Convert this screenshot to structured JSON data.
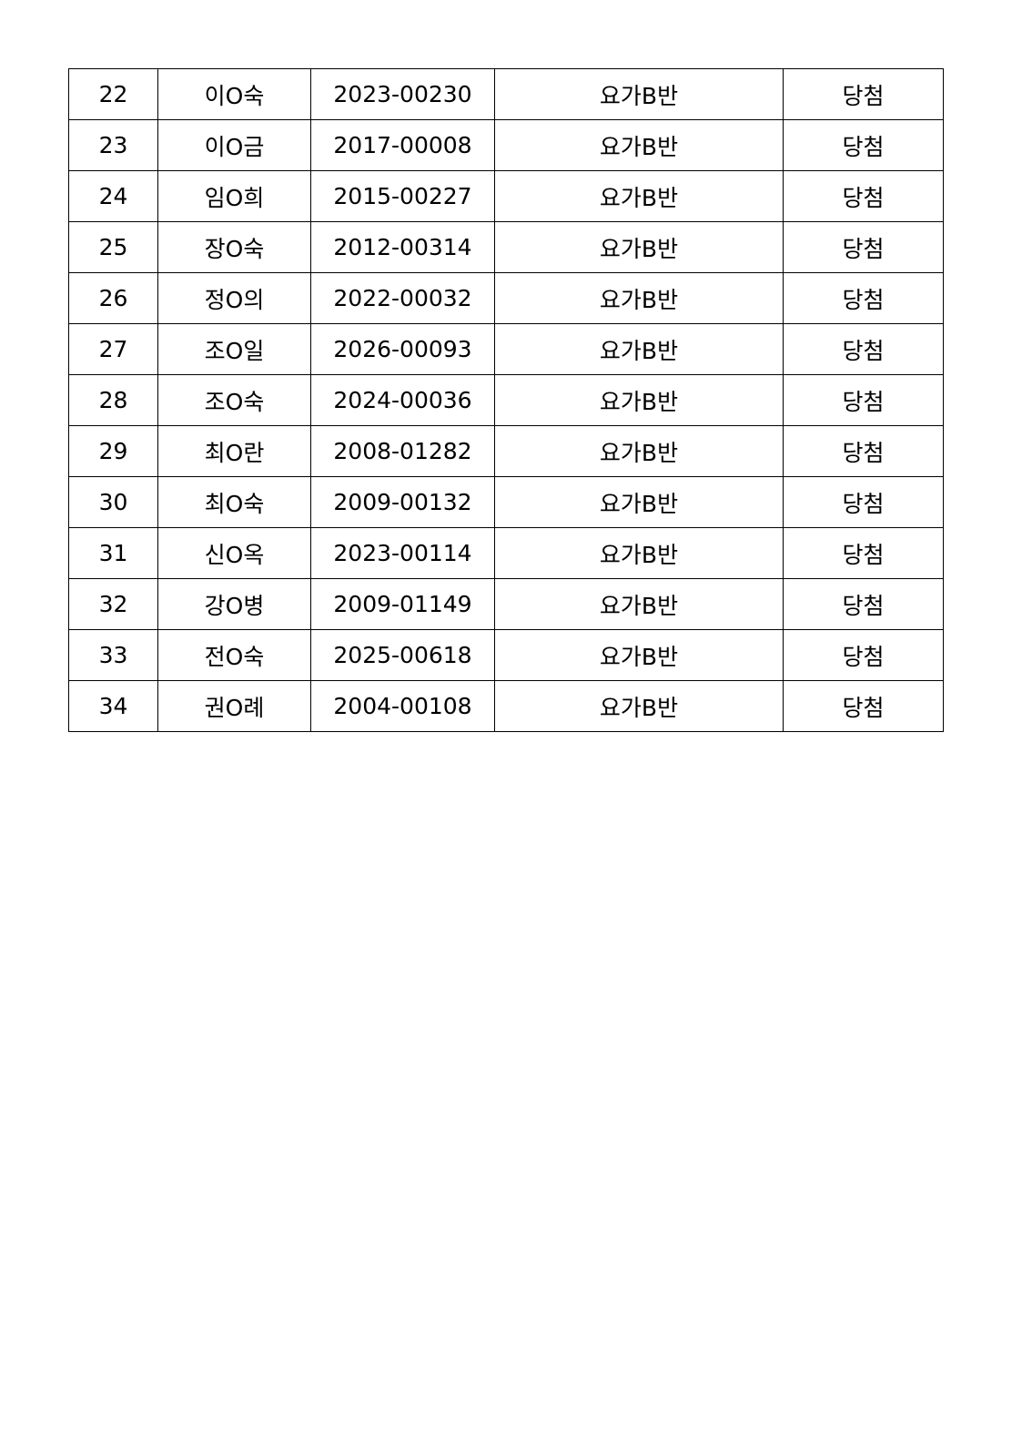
{
  "table": {
    "rows": [
      {
        "no": "22",
        "name": "이O숙",
        "id": "2023-00230",
        "class": "요가B반",
        "result": "당첨"
      },
      {
        "no": "23",
        "name": "이O금",
        "id": "2017-00008",
        "class": "요가B반",
        "result": "당첨"
      },
      {
        "no": "24",
        "name": "임O희",
        "id": "2015-00227",
        "class": "요가B반",
        "result": "당첨"
      },
      {
        "no": "25",
        "name": "장O숙",
        "id": "2012-00314",
        "class": "요가B반",
        "result": "당첨"
      },
      {
        "no": "26",
        "name": "정O의",
        "id": "2022-00032",
        "class": "요가B반",
        "result": "당첨"
      },
      {
        "no": "27",
        "name": "조O일",
        "id": "2026-00093",
        "class": "요가B반",
        "result": "당첨"
      },
      {
        "no": "28",
        "name": "조O숙",
        "id": "2024-00036",
        "class": "요가B반",
        "result": "당첨"
      },
      {
        "no": "29",
        "name": "최O란",
        "id": "2008-01282",
        "class": "요가B반",
        "result": "당첨"
      },
      {
        "no": "30",
        "name": "최O숙",
        "id": "2009-00132",
        "class": "요가B반",
        "result": "당첨"
      },
      {
        "no": "31",
        "name": "신O옥",
        "id": "2023-00114",
        "class": "요가B반",
        "result": "당첨"
      },
      {
        "no": "32",
        "name": "강O병",
        "id": "2009-01149",
        "class": "요가B반",
        "result": "당첨"
      },
      {
        "no": "33",
        "name": "전O숙",
        "id": "2025-00618",
        "class": "요가B반",
        "result": "당첨"
      },
      {
        "no": "34",
        "name": "권O례",
        "id": "2004-00108",
        "class": "요가B반",
        "result": "당첨"
      }
    ]
  }
}
